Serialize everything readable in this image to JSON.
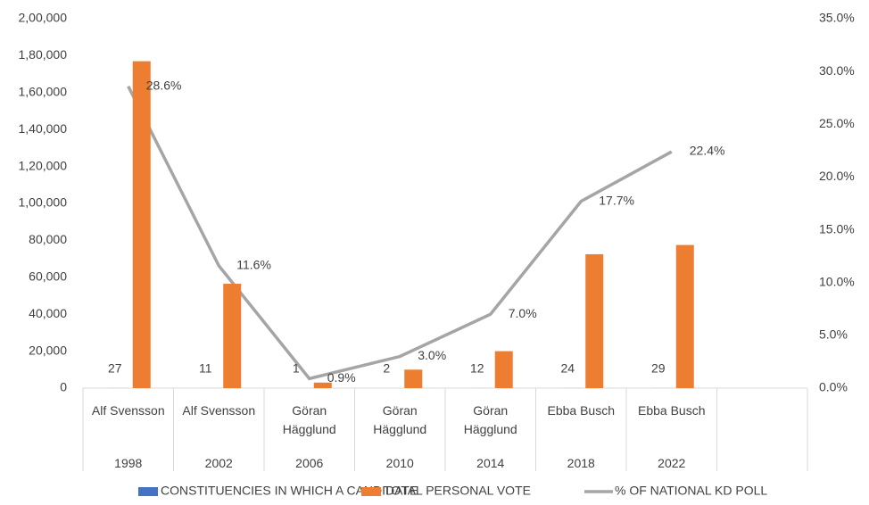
{
  "chart_data": {
    "type": "bar-line",
    "categories": [
      "Alf Svensson",
      "Alf Svensson",
      "Göran Hägglund",
      "Göran Hägglund",
      "Göran Hägglund",
      "Ebba Busch",
      "Ebba Busch",
      null
    ],
    "category_groups": [
      "1998",
      "2002",
      "2006",
      "2010",
      "2014",
      "2018",
      "2022",
      null
    ],
    "series": [
      {
        "name": "CONSTITUENCIES IN WHICH A CANDIDATE",
        "color": "#4472c4",
        "type": "bar",
        "values": [
          27,
          11,
          1,
          2,
          12,
          24,
          29,
          null
        ]
      },
      {
        "name": "TOTAL PERSONAL VOTE",
        "color": "#ed7d31",
        "type": "bar",
        "values": [
          177000,
          56500,
          3000,
          10000,
          20000,
          72500,
          77500,
          null
        ]
      },
      {
        "name": "% OF NATIONAL KD POLL",
        "color": "#a5a5a5",
        "type": "line",
        "axis": "y2",
        "values": [
          28.6,
          11.6,
          0.9,
          3.0,
          7.0,
          17.7,
          22.4,
          null
        ],
        "value_labels": [
          "28.6%",
          "11.6%",
          "0.9%",
          "3.0%",
          "7.0%",
          "17.7%",
          "22.4%",
          null
        ]
      }
    ],
    "ylim": [
      0,
      200000
    ],
    "yticks": [
      0,
      {
        "value": 20000,
        "label": "20,000"
      },
      {
        "value": 40000,
        "label": "40,000"
      },
      {
        "value": 60000,
        "label": "60,000"
      },
      {
        "value": 80000,
        "label": "80,000"
      },
      {
        "value": 100000,
        "label": "1,00,000"
      },
      {
        "value": 120000,
        "label": "1,20,000"
      },
      {
        "value": 140000,
        "label": "1,40,000"
      },
      {
        "value": 160000,
        "label": "1,60,000"
      },
      {
        "value": 180000,
        "label": "1,80,000"
      },
      {
        "value": 200000,
        "label": "2,00,000"
      }
    ],
    "y2lim": [
      0,
      35
    ],
    "y2ticks": [
      {
        "value": 0,
        "label": "0.0%"
      },
      {
        "value": 5,
        "label": "5.0%"
      },
      {
        "value": 10,
        "label": "10.0%"
      },
      {
        "value": 15,
        "label": "15.0%"
      },
      {
        "value": 20,
        "label": "20.0%"
      },
      {
        "value": 25,
        "label": "25.0%"
      },
      {
        "value": 30,
        "label": "30.0%"
      },
      {
        "value": 35,
        "label": "35.0%"
      }
    ],
    "grid": false,
    "legend": "bottom"
  }
}
